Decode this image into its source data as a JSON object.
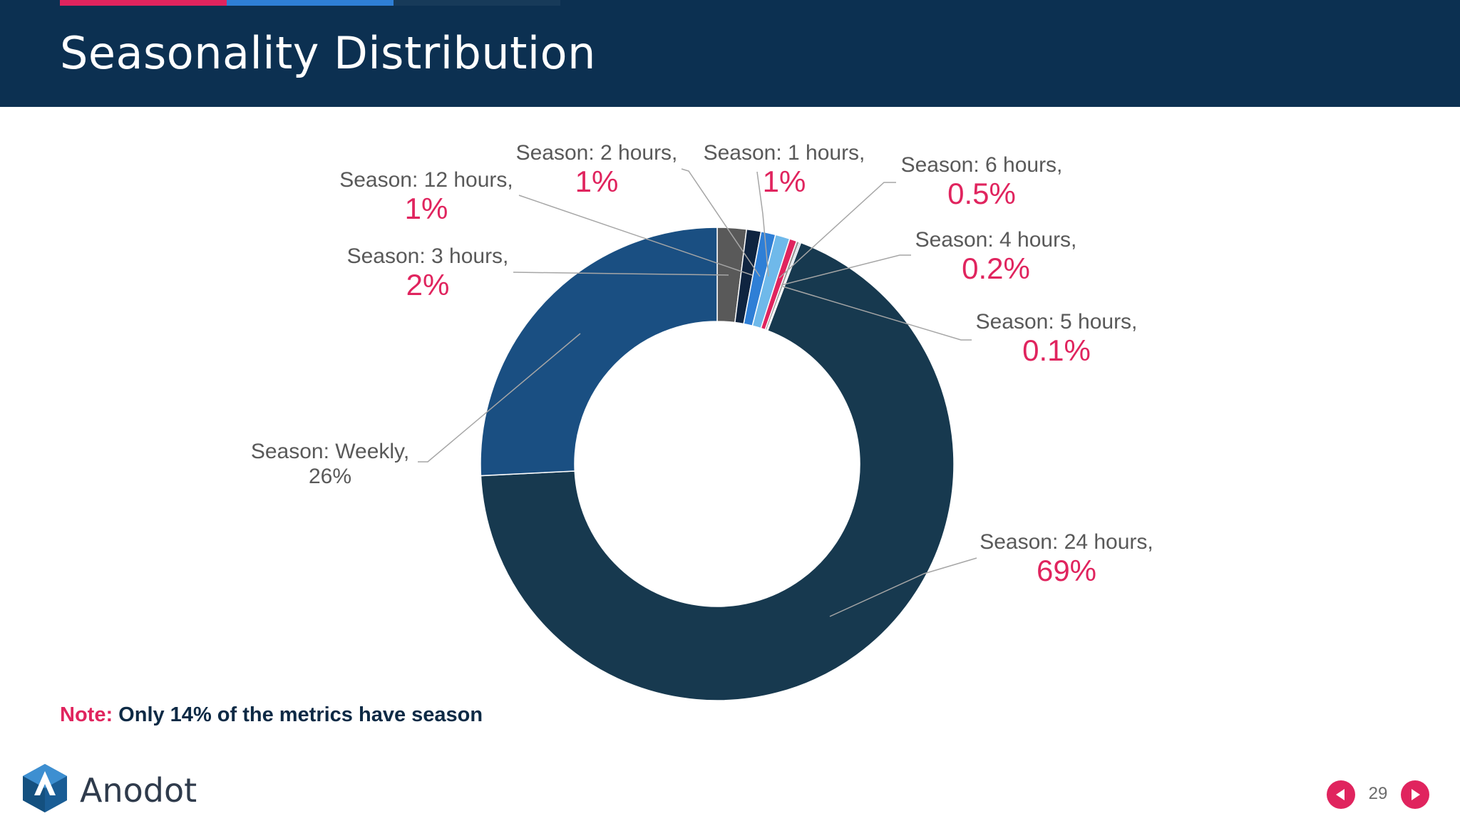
{
  "slide": {
    "title": "Seasonality Distribution",
    "note_label": "Note:",
    "note_text": " Only 14% of the metrics have season",
    "brand": "Anodot",
    "page_number": "29"
  },
  "colors": {
    "header_bg": "#0c3051",
    "accent_red": "#e0245e",
    "accent_blue": "#2f7fd6",
    "accent_navy": "#173a59",
    "value_label": "#e0245e"
  },
  "chart_data": {
    "type": "pie",
    "variant": "donut",
    "title": "",
    "slices": [
      {
        "name": "Season: 24 hours,",
        "value": 69,
        "value_label": "69%",
        "color": "#17394f",
        "value_color": "#e0245e"
      },
      {
        "name": "Season: Weekly,",
        "value": 26,
        "value_label": "26%",
        "color": "#1a4f82",
        "value_color": "#595959"
      },
      {
        "name": "Season: 3 hours,",
        "value": 2,
        "value_label": "2%",
        "color": "#595959",
        "value_color": "#e0245e"
      },
      {
        "name": "Season: 12 hours,",
        "value": 1,
        "value_label": "1%",
        "color": "#0f2440",
        "value_color": "#e0245e"
      },
      {
        "name": "Season: 2 hours,",
        "value": 1,
        "value_label": "1%",
        "color": "#2f7fd6",
        "value_color": "#e0245e"
      },
      {
        "name": "Season: 1 hours,",
        "value": 1,
        "value_label": "1%",
        "color": "#6fb9ea",
        "value_color": "#e0245e"
      },
      {
        "name": "Season: 6 hours,",
        "value": 0.5,
        "value_label": "0.5%",
        "color": "#e0245e",
        "value_color": "#e0245e"
      },
      {
        "name": "Season: 4 hours,",
        "value": 0.2,
        "value_label": "0.2%",
        "color": "#9a9a9a",
        "value_color": "#e0245e"
      },
      {
        "name": "Season: 5 hours,",
        "value": 0.1,
        "value_label": "0.1%",
        "color": "#6a8fb0",
        "value_color": "#e0245e"
      }
    ],
    "legend": "none"
  }
}
